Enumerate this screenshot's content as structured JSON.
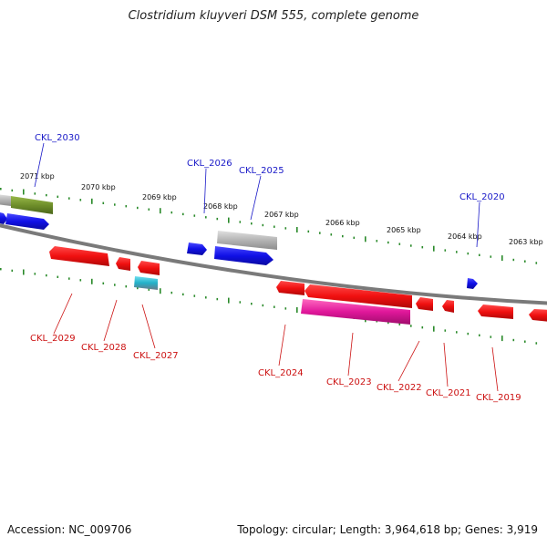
{
  "title": "Clostridium kluyveri DSM 555, complete genome",
  "footer": {
    "accession": "Accession: NC_009706",
    "summary": "Topology: circular; Length: 3,964,618 bp; Genes: 3,919"
  },
  "colors": {
    "backbone": "#7a7a7a",
    "tick": "#2a8a2a",
    "forward_label": "#1a1ac8",
    "reverse_label": "#cc1111",
    "kbp_label": "#111111",
    "gene_blue": "#1010e6",
    "gene_red": "#f01010",
    "gene_magenta": "#e0179a",
    "gene_gray": "#b4b4b4",
    "gene_olive": "#6f8f2a",
    "gene_cyan": "#22b0c8"
  },
  "scale": {
    "kbp_labels": [
      "2071 kbp",
      "2070 kbp",
      "2069 kbp",
      "2068 kbp",
      "2067 kbp",
      "2066 kbp",
      "2065 kbp",
      "2064 kbp",
      "2063 kbp"
    ]
  },
  "genes": [
    {
      "locus": "CKL_2030",
      "strand": "forward",
      "type": "blue"
    },
    {
      "locus": "CKL_2026",
      "strand": "forward",
      "type": "blue"
    },
    {
      "locus": "CKL_2025",
      "strand": "forward",
      "type": "blue"
    },
    {
      "locus": "CKL_2020",
      "strand": "forward",
      "type": "blue"
    },
    {
      "locus": "CKL_2029",
      "strand": "reverse",
      "type": "red"
    },
    {
      "locus": "CKL_2028",
      "strand": "reverse",
      "type": "red"
    },
    {
      "locus": "CKL_2027",
      "strand": "reverse",
      "type": "red"
    },
    {
      "locus": "CKL_2024",
      "strand": "reverse",
      "type": "red"
    },
    {
      "locus": "CKL_2023",
      "strand": "reverse",
      "type": "red"
    },
    {
      "locus": "CKL_2022",
      "strand": "reverse",
      "type": "red"
    },
    {
      "locus": "CKL_2021",
      "strand": "reverse",
      "type": "red"
    },
    {
      "locus": "CKL_2019",
      "strand": "reverse",
      "type": "red"
    }
  ]
}
